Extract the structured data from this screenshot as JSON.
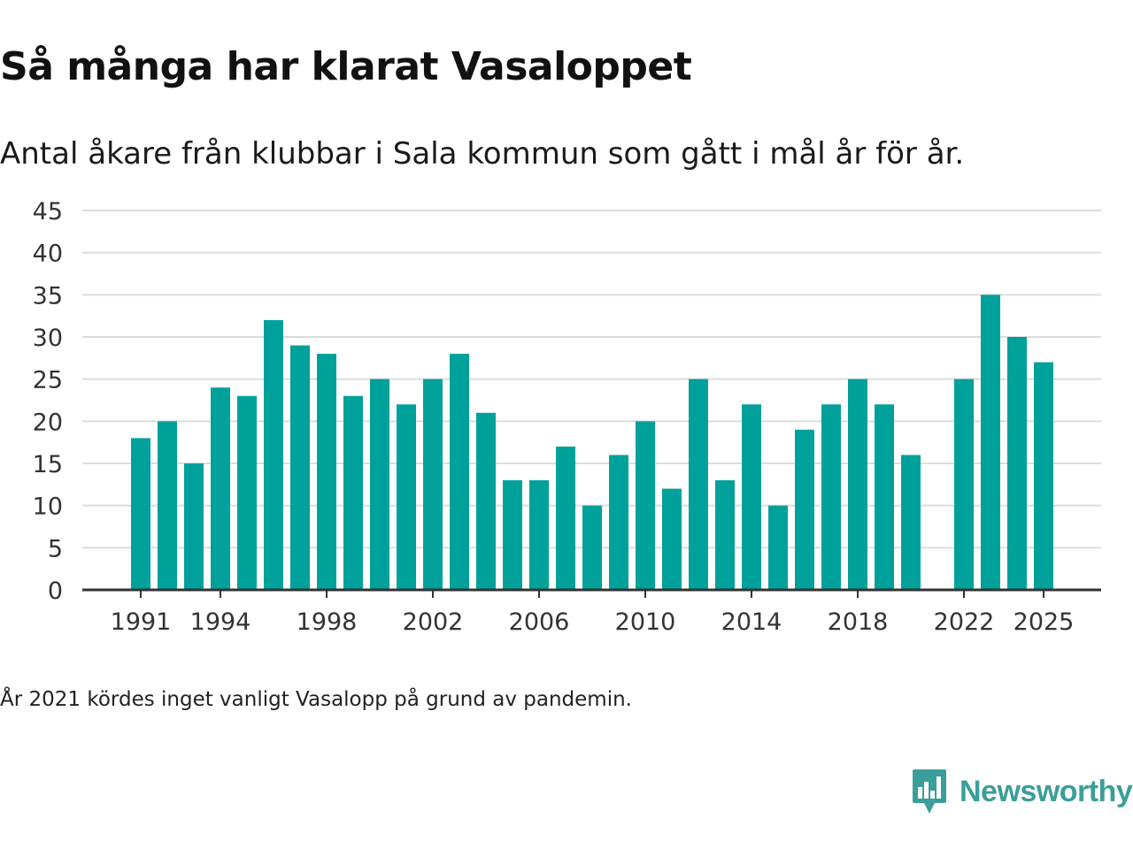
{
  "title": "Så många har klarat Vasaloppet",
  "subtitle": "Antal åkare från klubbar i Sala kommun som gått i mål år för år.",
  "footnote": "År 2021 kördes inget vanligt Vasalopp på grund av pandemin.",
  "brand": {
    "name": "Newsworthy",
    "logo_icon": "chart-speech-bubble-icon",
    "color": "#3a9e9a"
  },
  "colors": {
    "bar": "#00a19a",
    "grid": "#dcdcdc",
    "axis": "#333333",
    "tick_text": "#333333"
  },
  "chart_data": {
    "type": "bar",
    "title": "Så många har klarat Vasaloppet",
    "subtitle": "Antal åkare från klubbar i Sala kommun som gått i mål år för år.",
    "xlabel": "",
    "ylabel": "",
    "ylim": [
      0,
      45
    ],
    "yticks": [
      0,
      5,
      10,
      15,
      20,
      25,
      30,
      35,
      40,
      45
    ],
    "xtick_labels": [
      "1991",
      "1994",
      "1998",
      "2002",
      "2006",
      "2010",
      "2014",
      "2018",
      "2022",
      "2025"
    ],
    "grid": true,
    "legend": "none",
    "categories": [
      1991,
      1992,
      1993,
      1994,
      1995,
      1996,
      1997,
      1998,
      1999,
      2000,
      2001,
      2002,
      2003,
      2004,
      2005,
      2006,
      2007,
      2008,
      2009,
      2010,
      2011,
      2012,
      2013,
      2014,
      2015,
      2016,
      2017,
      2018,
      2019,
      2020,
      2021,
      2022,
      2023,
      2024,
      2025
    ],
    "values": [
      18,
      20,
      15,
      24,
      23,
      32,
      29,
      28,
      23,
      25,
      22,
      25,
      28,
      21,
      13,
      13,
      17,
      10,
      16,
      20,
      12,
      25,
      13,
      22,
      10,
      19,
      22,
      25,
      22,
      16,
      null,
      25,
      35,
      30,
      27
    ]
  }
}
